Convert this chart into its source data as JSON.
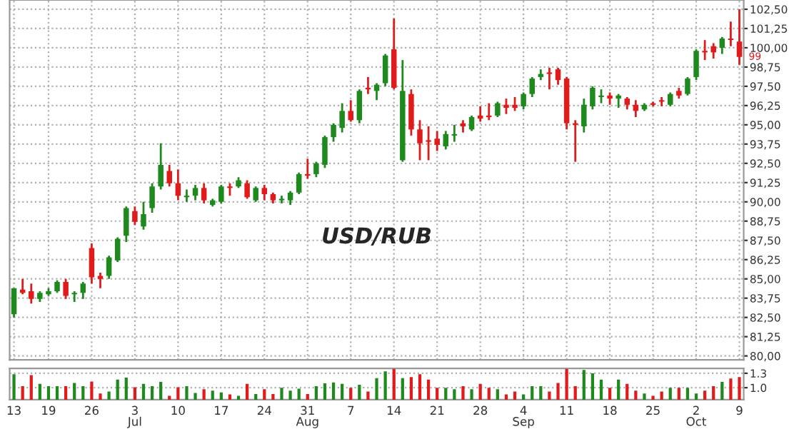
{
  "chart_data": [
    {
      "type": "candlestick",
      "categories": [
        null,
        null,
        null,
        null,
        null,
        null,
        null,
        null,
        null,
        null,
        null,
        null,
        null,
        null,
        null,
        null,
        null,
        null,
        null,
        null,
        null,
        null,
        null,
        null,
        null,
        null,
        null,
        null,
        null,
        null,
        null,
        null,
        null,
        null,
        null,
        null,
        null,
        null,
        null,
        null,
        null,
        null,
        null,
        null,
        null,
        null,
        null,
        null,
        null,
        null,
        null,
        null,
        null,
        null,
        null,
        null,
        null,
        null,
        null,
        null,
        null,
        null,
        null,
        null,
        null,
        null,
        null,
        null,
        null,
        null,
        null,
        null,
        null,
        null,
        null,
        null,
        null,
        null,
        null,
        null,
        null,
        null,
        null,
        null,
        null
      ],
      "ohlc": [
        [
          82.7,
          84.4,
          82.5,
          84.4
        ],
        [
          84.3,
          85.0,
          84.0,
          84.1
        ],
        [
          84.2,
          84.7,
          83.4,
          83.7
        ],
        [
          83.7,
          84.2,
          83.5,
          84.1
        ],
        [
          84.0,
          84.4,
          83.9,
          84.2
        ],
        [
          84.2,
          84.9,
          84.1,
          84.8
        ],
        [
          84.8,
          85.0,
          83.7,
          83.9
        ],
        [
          84.0,
          84.2,
          83.5,
          84.1
        ],
        [
          84.1,
          84.8,
          83.7,
          84.7
        ],
        [
          87.0,
          87.3,
          84.7,
          85.1
        ],
        [
          85.2,
          85.4,
          84.4,
          85.0
        ],
        [
          85.2,
          86.5,
          85.0,
          86.4
        ],
        [
          86.2,
          87.7,
          86.1,
          87.6
        ],
        [
          87.8,
          89.7,
          87.4,
          89.6
        ],
        [
          89.4,
          89.7,
          88.5,
          88.7
        ],
        [
          88.4,
          90.0,
          88.2,
          89.2
        ],
        [
          89.6,
          91.2,
          89.3,
          91.0
        ],
        [
          91.0,
          93.8,
          90.8,
          92.4
        ],
        [
          92.0,
          92.4,
          91.0,
          91.2
        ],
        [
          91.2,
          92.1,
          90.1,
          90.4
        ],
        [
          90.3,
          90.8,
          90.0,
          90.4
        ],
        [
          90.4,
          91.1,
          90.1,
          90.9
        ],
        [
          90.9,
          91.2,
          89.9,
          90.1
        ],
        [
          89.8,
          90.2,
          89.7,
          90.1
        ],
        [
          90.0,
          91.1,
          89.9,
          91.0
        ],
        [
          91.0,
          91.2,
          90.4,
          90.9
        ],
        [
          91.0,
          91.6,
          90.9,
          91.4
        ],
        [
          91.2,
          91.4,
          90.2,
          90.3
        ],
        [
          90.1,
          91.0,
          90.0,
          90.9
        ],
        [
          90.9,
          91.1,
          90.1,
          90.5
        ],
        [
          90.5,
          90.6,
          89.9,
          90.1
        ],
        [
          90.1,
          90.4,
          89.9,
          90.2
        ],
        [
          90.1,
          90.7,
          89.8,
          90.6
        ],
        [
          90.6,
          91.9,
          90.5,
          91.8
        ],
        [
          91.8,
          92.8,
          91.5,
          91.7
        ],
        [
          91.8,
          92.6,
          91.6,
          92.5
        ],
        [
          92.4,
          94.3,
          92.2,
          94.2
        ],
        [
          94.2,
          95.1,
          93.9,
          95.0
        ],
        [
          94.8,
          96.4,
          94.5,
          95.9
        ],
        [
          95.9,
          96.6,
          95.2,
          95.3
        ],
        [
          95.3,
          97.3,
          95.1,
          97.2
        ],
        [
          97.4,
          98.1,
          97.0,
          97.3
        ],
        [
          97.2,
          97.7,
          96.6,
          97.6
        ],
        [
          97.7,
          99.6,
          97.5,
          99.5
        ],
        [
          99.9,
          101.9,
          97.3,
          97.4
        ],
        [
          92.7,
          99.2,
          92.6,
          97.2
        ],
        [
          97.0,
          97.3,
          94.3,
          94.7
        ],
        [
          94.7,
          95.3,
          92.7,
          93.8
        ],
        [
          94.0,
          94.9,
          92.7,
          93.9
        ],
        [
          94.1,
          94.6,
          93.3,
          93.7
        ],
        [
          93.6,
          94.6,
          93.4,
          94.4
        ],
        [
          94.3,
          95.0,
          93.9,
          94.4
        ],
        [
          95.1,
          95.3,
          94.5,
          94.9
        ],
        [
          94.7,
          95.6,
          94.6,
          95.5
        ],
        [
          95.6,
          96.2,
          95.2,
          95.4
        ],
        [
          95.6,
          96.4,
          95.3,
          95.5
        ],
        [
          95.6,
          96.5,
          95.5,
          96.4
        ],
        [
          96.3,
          96.7,
          95.7,
          96.1
        ],
        [
          96.3,
          96.8,
          95.9,
          96.1
        ],
        [
          96.2,
          97.1,
          96.0,
          97.0
        ],
        [
          97.0,
          98.1,
          96.8,
          98.0
        ],
        [
          98.1,
          98.6,
          97.9,
          98.3
        ],
        [
          98.4,
          98.7,
          97.3,
          98.3
        ],
        [
          98.6,
          98.7,
          97.6,
          97.9
        ],
        [
          98.0,
          98.1,
          94.7,
          95.1
        ],
        [
          95.1,
          95.3,
          92.6,
          95.0
        ],
        [
          94.9,
          96.7,
          94.5,
          96.3
        ],
        [
          96.2,
          97.5,
          96.0,
          97.4
        ],
        [
          96.8,
          97.3,
          96.4,
          96.9
        ],
        [
          96.9,
          97.1,
          96.3,
          96.7
        ],
        [
          96.7,
          97.0,
          96.1,
          96.9
        ],
        [
          96.7,
          96.8,
          96.0,
          96.3
        ],
        [
          96.3,
          96.6,
          95.5,
          95.9
        ],
        [
          96.0,
          96.4,
          95.9,
          96.3
        ],
        [
          96.4,
          96.5,
          96.2,
          96.3
        ],
        [
          96.6,
          96.8,
          96.2,
          96.5
        ],
        [
          96.3,
          97.1,
          96.2,
          97.0
        ],
        [
          97.2,
          97.4,
          96.7,
          96.9
        ],
        [
          97.0,
          98.1,
          96.9,
          98.0
        ],
        [
          98.1,
          99.9,
          97.9,
          99.8
        ],
        [
          99.8,
          100.5,
          99.2,
          99.7
        ],
        [
          100.1,
          100.3,
          99.3,
          99.7
        ],
        [
          100.0,
          100.7,
          99.6,
          100.6
        ],
        [
          100.6,
          101.7,
          100.1,
          100.5
        ],
        [
          100.4,
          102.5,
          98.9,
          99.4
        ]
      ],
      "colors": [
        "#1e8a1e",
        "#e01b1b",
        "#e01b1b",
        "#1e8a1e",
        "#1e8a1e",
        "#1e8a1e",
        "#e01b1b",
        "#1e8a1e",
        "#1e8a1e",
        "#e01b1b",
        "#e01b1b",
        "#1e8a1e",
        "#1e8a1e",
        "#1e8a1e",
        "#e01b1b",
        "#1e8a1e",
        "#1e8a1e",
        "#1e8a1e",
        "#e01b1b",
        "#e01b1b",
        "#1e8a1e",
        "#1e8a1e",
        "#e01b1b",
        "#1e8a1e",
        "#1e8a1e",
        "#e01b1b",
        "#1e8a1e",
        "#e01b1b",
        "#1e8a1e",
        "#e01b1b",
        "#e01b1b",
        "#1e8a1e",
        "#1e8a1e",
        "#1e8a1e",
        "#e01b1b",
        "#1e8a1e",
        "#1e8a1e",
        "#1e8a1e",
        "#1e8a1e",
        "#e01b1b",
        "#1e8a1e",
        "#e01b1b",
        "#1e8a1e",
        "#1e8a1e",
        "#e01b1b",
        "#1e8a1e",
        "#e01b1b",
        "#e01b1b",
        "#e01b1b",
        "#e01b1b",
        "#1e8a1e",
        "#1e8a1e",
        "#e01b1b",
        "#1e8a1e",
        "#e01b1b",
        "#e01b1b",
        "#1e8a1e",
        "#e01b1b",
        "#e01b1b",
        "#1e8a1e",
        "#1e8a1e",
        "#1e8a1e",
        "#e01b1b",
        "#e01b1b",
        "#e01b1b",
        "#e01b1b",
        "#1e8a1e",
        "#1e8a1e",
        "#1e8a1e",
        "#e01b1b",
        "#1e8a1e",
        "#e01b1b",
        "#e01b1b",
        "#1e8a1e",
        "#e01b1b",
        "#e01b1b",
        "#1e8a1e",
        "#e01b1b",
        "#1e8a1e",
        "#1e8a1e",
        "#e01b1b",
        "#e01b1b",
        "#1e8a1e",
        "#e01b1b",
        "#e01b1b"
      ],
      "ylim": [
        79.75,
        103.1
      ],
      "yticks": [
        {
          "value": 80,
          "label": "80,00"
        },
        {
          "value": 81.25,
          "label": "81,25"
        },
        {
          "value": 82.5,
          "label": "82,50"
        },
        {
          "value": 83.75,
          "label": "83,75"
        },
        {
          "value": 85,
          "label": "85,00"
        },
        {
          "value": 86.25,
          "label": "86,25"
        },
        {
          "value": 87.5,
          "label": "87,50"
        },
        {
          "value": 88.75,
          "label": "88,75"
        },
        {
          "value": 90,
          "label": "90,00"
        },
        {
          "value": 91.25,
          "label": "91,25"
        },
        {
          "value": 92.5,
          "label": "92,50"
        },
        {
          "value": 93.75,
          "label": "93,75"
        },
        {
          "value": 95,
          "label": "95,00"
        },
        {
          "value": 96.25,
          "label": "96,25"
        },
        {
          "value": 97.5,
          "label": "97,50"
        },
        {
          "value": 98.75,
          "label": "98,75"
        },
        {
          "value": 100,
          "label": "100,00"
        },
        {
          "value": 101.25,
          "label": "101,25"
        },
        {
          "value": 102.5,
          "label": "102,50"
        }
      ],
      "annotations": [
        "USD/RUB",
        "99"
      ],
      "grid": true,
      "tick_labels": "y"
    },
    {
      "type": "bar",
      "categories": [
        "13",
        null,
        null,
        null,
        "19",
        null,
        null,
        null,
        null,
        "26",
        null,
        null,
        null,
        null,
        "3\nJul",
        null,
        null,
        null,
        null,
        "10",
        null,
        null,
        null,
        null,
        "17",
        null,
        null,
        null,
        null,
        "24",
        null,
        null,
        null,
        null,
        "31\nAug",
        null,
        null,
        null,
        null,
        "7",
        null,
        null,
        null,
        null,
        "14",
        null,
        null,
        null,
        null,
        "21",
        null,
        null,
        null,
        null,
        "28",
        null,
        null,
        null,
        null,
        "4\nSep",
        null,
        null,
        null,
        null,
        "11",
        null,
        null,
        null,
        null,
        "18",
        null,
        null,
        null,
        null,
        "25",
        null,
        null,
        null,
        null,
        "2\nOct",
        null,
        null,
        null,
        null,
        "9"
      ],
      "values": [
        1.28,
        1.03,
        1.26,
        1.08,
        1.03,
        1.03,
        1.03,
        1.1,
        1.03,
        1.13,
        0.88,
        0.92,
        1.17,
        1.21,
        1.01,
        1.08,
        1.03,
        1.12,
        0.83,
        1.01,
        1.03,
        0.89,
        0.97,
        0.94,
        0.9,
        0.86,
        0.83,
        1.08,
        0.87,
        0.97,
        0.87,
        1.0,
        0.94,
        0.98,
        0.87,
        1.03,
        1.09,
        1.11,
        1.08,
        1.0,
        1.06,
        0.92,
        1.2,
        1.34,
        1.39,
        1.2,
        1.22,
        1.28,
        1.17,
        1.0,
        1.0,
        0.97,
        1.03,
        0.97,
        1.08,
        1.0,
        0.97,
        0.86,
        0.92,
        0.86,
        1.03,
        1.03,
        0.92,
        1.1,
        1.39,
        1.03,
        1.37,
        1.3,
        1.17,
        1.0,
        1.17,
        1.08,
        0.94,
        0.88,
        0.83,
        0.92,
        1.0,
        1.0,
        1.0,
        0.88,
        0.94,
        1.03,
        1.12,
        1.19,
        1.22
      ],
      "colors": [
        "#1e8a1e",
        "#e01b1b",
        "#e01b1b",
        "#1e8a1e",
        "#1e8a1e",
        "#1e8a1e",
        "#e01b1b",
        "#1e8a1e",
        "#1e8a1e",
        "#e01b1b",
        "#e01b1b",
        "#1e8a1e",
        "#1e8a1e",
        "#1e8a1e",
        "#e01b1b",
        "#1e8a1e",
        "#1e8a1e",
        "#1e8a1e",
        "#e01b1b",
        "#e01b1b",
        "#1e8a1e",
        "#1e8a1e",
        "#e01b1b",
        "#1e8a1e",
        "#1e8a1e",
        "#e01b1b",
        "#1e8a1e",
        "#e01b1b",
        "#1e8a1e",
        "#e01b1b",
        "#e01b1b",
        "#1e8a1e",
        "#1e8a1e",
        "#1e8a1e",
        "#e01b1b",
        "#1e8a1e",
        "#1e8a1e",
        "#1e8a1e",
        "#1e8a1e",
        "#e01b1b",
        "#1e8a1e",
        "#e01b1b",
        "#1e8a1e",
        "#1e8a1e",
        "#e01b1b",
        "#1e8a1e",
        "#e01b1b",
        "#e01b1b",
        "#e01b1b",
        "#e01b1b",
        "#1e8a1e",
        "#1e8a1e",
        "#e01b1b",
        "#1e8a1e",
        "#e01b1b",
        "#e01b1b",
        "#1e8a1e",
        "#e01b1b",
        "#e01b1b",
        "#1e8a1e",
        "#1e8a1e",
        "#1e8a1e",
        "#e01b1b",
        "#e01b1b",
        "#e01b1b",
        "#e01b1b",
        "#1e8a1e",
        "#1e8a1e",
        "#1e8a1e",
        "#e01b1b",
        "#1e8a1e",
        "#e01b1b",
        "#e01b1b",
        "#1e8a1e",
        "#e01b1b",
        "#e01b1b",
        "#1e8a1e",
        "#e01b1b",
        "#1e8a1e",
        "#1e8a1e",
        "#e01b1b",
        "#e01b1b",
        "#1e8a1e",
        "#e01b1b",
        "#e01b1b"
      ],
      "ylim": [
        0.75,
        1.4
      ],
      "yticks": [
        {
          "value": 1.0,
          "label": "1.0"
        },
        {
          "value": 1.3,
          "label": "1.3"
        }
      ],
      "grid": "y"
    }
  ]
}
